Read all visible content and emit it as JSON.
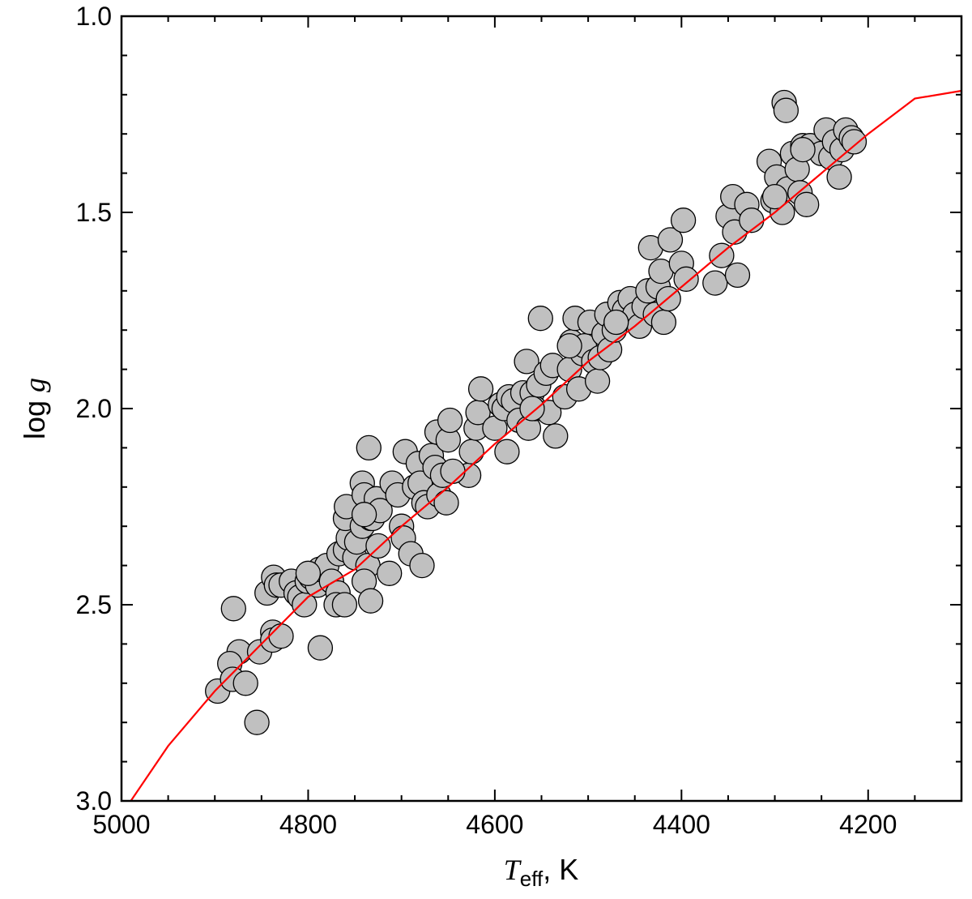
{
  "chart_data": {
    "type": "scatter",
    "title": "",
    "xlabel": {
      "symbol": "T",
      "subscript": "eff",
      "suffix": ", K"
    },
    "ylabel": {
      "prefix": "log ",
      "symbol": "g"
    },
    "xlim": [
      5000,
      4100
    ],
    "ylim": [
      3.0,
      1.0
    ],
    "x_reversed": true,
    "y_reversed": true,
    "xticks": [
      5000,
      4800,
      4600,
      4400,
      4200
    ],
    "yticks": [
      1.0,
      1.5,
      2.0,
      2.5,
      3.0
    ],
    "xtick_labels": [
      "5000",
      "4800",
      "4600",
      "4400",
      "4200"
    ],
    "ytick_labels": [
      "1.0",
      "1.5",
      "2.0",
      "2.5",
      "3.0"
    ],
    "grid": false,
    "legend": "none",
    "marker_color": "#c0c0c0",
    "marker_edge": "#000000",
    "line_color": "#ff0000",
    "series": [
      {
        "kind": "points",
        "points": [
          [
            4897,
            2.72
          ],
          [
            4880,
            2.51
          ],
          [
            4874,
            2.62
          ],
          [
            4884,
            2.65
          ],
          [
            4881,
            2.69
          ],
          [
            4867,
            2.7
          ],
          [
            4855,
            2.8
          ],
          [
            4852,
            2.62
          ],
          [
            4838,
            2.57
          ],
          [
            4838,
            2.59
          ],
          [
            4829,
            2.58
          ],
          [
            4844,
            2.47
          ],
          [
            4837,
            2.43
          ],
          [
            4834,
            2.45
          ],
          [
            4829,
            2.45
          ],
          [
            4818,
            2.44
          ],
          [
            4813,
            2.47
          ],
          [
            4809,
            2.48
          ],
          [
            4804,
            2.5
          ],
          [
            4801,
            2.44
          ],
          [
            4797,
            2.43
          ],
          [
            4790,
            2.45
          ],
          [
            4788,
            2.41
          ],
          [
            4780,
            2.4
          ],
          [
            4775,
            2.44
          ],
          [
            4768,
            2.47
          ],
          [
            4770,
            2.5
          ],
          [
            4761,
            2.5
          ],
          [
            4787,
            2.61
          ],
          [
            4767,
            2.37
          ],
          [
            4760,
            2.36
          ],
          [
            4757,
            2.33
          ],
          [
            4760,
            2.28
          ],
          [
            4759,
            2.25
          ],
          [
            4750,
            2.38
          ],
          [
            4748,
            2.34
          ],
          [
            4742,
            2.3
          ],
          [
            4742,
            2.19
          ],
          [
            4740,
            2.22
          ],
          [
            4736,
            2.4
          ],
          [
            4733,
            2.28
          ],
          [
            4731,
            2.28
          ],
          [
            4727,
            2.23
          ],
          [
            4723,
            2.26
          ],
          [
            4725,
            2.35
          ],
          [
            4740,
            2.44
          ],
          [
            4733,
            2.49
          ],
          [
            4735,
            2.1
          ],
          [
            4713,
            2.42
          ],
          [
            4710,
            2.19
          ],
          [
            4704,
            2.22
          ],
          [
            4700,
            2.3
          ],
          [
            4698,
            2.33
          ],
          [
            4696,
            2.11
          ],
          [
            4690,
            2.37
          ],
          [
            4686,
            2.2
          ],
          [
            4682,
            2.14
          ],
          [
            4680,
            2.19
          ],
          [
            4676,
            2.24
          ],
          [
            4672,
            2.25
          ],
          [
            4668,
            2.12
          ],
          [
            4664,
            2.15
          ],
          [
            4662,
            2.06
          ],
          [
            4660,
            2.22
          ],
          [
            4656,
            2.17
          ],
          [
            4652,
            2.24
          ],
          [
            4650,
            2.08
          ],
          [
            4648,
            2.03
          ],
          [
            4678,
            2.4
          ],
          [
            4628,
            2.17
          ],
          [
            4625,
            2.11
          ],
          [
            4620,
            2.05
          ],
          [
            4618,
            2.01
          ],
          [
            4615,
            1.95
          ],
          [
            4600,
            2.05
          ],
          [
            4594,
            1.99
          ],
          [
            4590,
            2.0
          ],
          [
            4587,
            2.11
          ],
          [
            4585,
            1.97
          ],
          [
            4580,
            1.98
          ],
          [
            4574,
            2.03
          ],
          [
            4570,
            1.96
          ],
          [
            4566,
            1.88
          ],
          [
            4564,
            2.05
          ],
          [
            4560,
            1.96
          ],
          [
            4557,
            2.0
          ],
          [
            4553,
            1.94
          ],
          [
            4551,
            1.77
          ],
          [
            4545,
            1.91
          ],
          [
            4542,
            2.01
          ],
          [
            4538,
            1.89
          ],
          [
            4535,
            2.07
          ],
          [
            4525,
            1.97
          ],
          [
            4520,
            1.9
          ],
          [
            4518,
            1.83
          ],
          [
            4514,
            1.77
          ],
          [
            4510,
            1.95
          ],
          [
            4506,
            1.86
          ],
          [
            4504,
            1.84
          ],
          [
            4498,
            1.78
          ],
          [
            4494,
            1.88
          ],
          [
            4490,
            1.93
          ],
          [
            4487,
            1.87
          ],
          [
            4483,
            1.81
          ],
          [
            4480,
            1.76
          ],
          [
            4477,
            1.85
          ],
          [
            4472,
            1.8
          ],
          [
            4466,
            1.73
          ],
          [
            4461,
            1.75
          ],
          [
            4455,
            1.72
          ],
          [
            4450,
            1.76
          ],
          [
            4445,
            1.79
          ],
          [
            4440,
            1.74
          ],
          [
            4436,
            1.7
          ],
          [
            4433,
            1.59
          ],
          [
            4428,
            1.76
          ],
          [
            4425,
            1.69
          ],
          [
            4422,
            1.65
          ],
          [
            4419,
            1.78
          ],
          [
            4414,
            1.72
          ],
          [
            4412,
            1.57
          ],
          [
            4400,
            1.63
          ],
          [
            4398,
            1.52
          ],
          [
            4395,
            1.67
          ],
          [
            4364,
            1.68
          ],
          [
            4357,
            1.61
          ],
          [
            4350,
            1.51
          ],
          [
            4345,
            1.46
          ],
          [
            4343,
            1.55
          ],
          [
            4340,
            1.66
          ],
          [
            4330,
            1.48
          ],
          [
            4325,
            1.52
          ],
          [
            4306,
            1.37
          ],
          [
            4302,
            1.47
          ],
          [
            4298,
            1.41
          ],
          [
            4292,
            1.5
          ],
          [
            4290,
            1.22
          ],
          [
            4288,
            1.24
          ],
          [
            4286,
            1.44
          ],
          [
            4281,
            1.35
          ],
          [
            4276,
            1.39
          ],
          [
            4273,
            1.45
          ],
          [
            4270,
            1.33
          ],
          [
            4266,
            1.48
          ],
          [
            4262,
            1.33
          ],
          [
            4250,
            1.35
          ],
          [
            4245,
            1.29
          ],
          [
            4240,
            1.36
          ],
          [
            4236,
            1.32
          ],
          [
            4231,
            1.41
          ],
          [
            4228,
            1.34
          ],
          [
            4224,
            1.29
          ],
          [
            4218,
            1.31
          ],
          [
            4215,
            1.32
          ],
          [
            4270,
            1.34
          ],
          [
            4300,
            1.46
          ],
          [
            4470,
            1.78
          ],
          [
            4520,
            1.84
          ],
          [
            4645,
            2.16
          ],
          [
            4740,
            2.27
          ],
          [
            4800,
            2.42
          ],
          [
            4560,
            2.0
          ]
        ]
      },
      {
        "kind": "line",
        "points": [
          [
            4990,
            3.0
          ],
          [
            4950,
            2.86
          ],
          [
            4900,
            2.72
          ],
          [
            4850,
            2.6
          ],
          [
            4800,
            2.48
          ],
          [
            4750,
            2.41
          ],
          [
            4700,
            2.3
          ],
          [
            4650,
            2.2
          ],
          [
            4600,
            2.09
          ],
          [
            4550,
            1.99
          ],
          [
            4500,
            1.88
          ],
          [
            4450,
            1.79
          ],
          [
            4400,
            1.69
          ],
          [
            4350,
            1.59
          ],
          [
            4300,
            1.5
          ],
          [
            4250,
            1.4
          ],
          [
            4200,
            1.3
          ],
          [
            4150,
            1.21
          ],
          [
            4100,
            1.19
          ]
        ]
      }
    ]
  }
}
